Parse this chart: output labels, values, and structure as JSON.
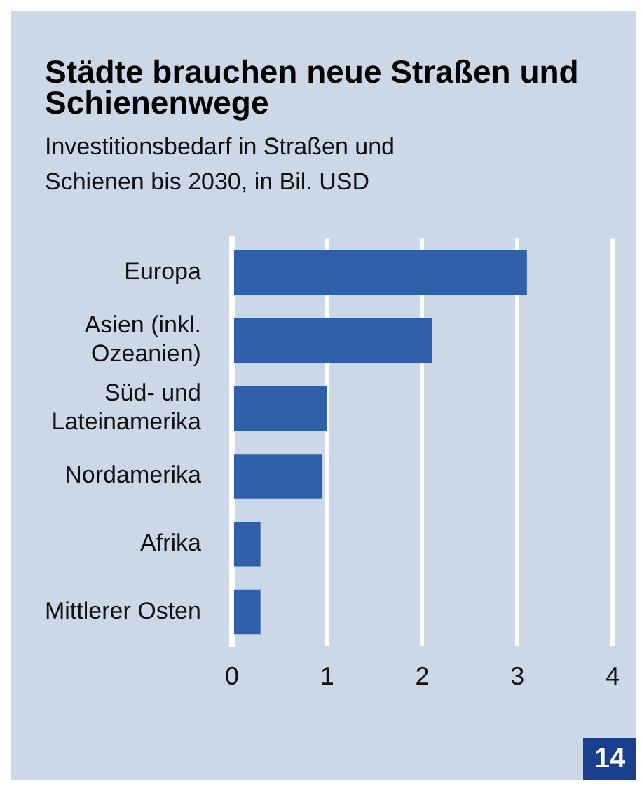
{
  "chart_data": {
    "type": "bar",
    "orientation": "horizontal",
    "title": "Städte brauchen neue Straßen und Schienenwege",
    "subtitle": "Investitionsbedarf in Straßen und Schienen bis 2030, in Bil. USD",
    "categories": [
      "Europa",
      "Asien (inkl. Ozeanien)",
      "Süd- und Lateinamerika",
      "Nordamerika",
      "Afrika",
      "Mittlerer Osten"
    ],
    "values": [
      3.1,
      2.1,
      1.0,
      0.95,
      0.3,
      0.3
    ],
    "color": "#3160ab",
    "xlim": [
      0,
      4
    ],
    "xticks": [
      0,
      1,
      2,
      3,
      4
    ],
    "grid": "x",
    "annotations": [
      "14"
    ]
  }
}
